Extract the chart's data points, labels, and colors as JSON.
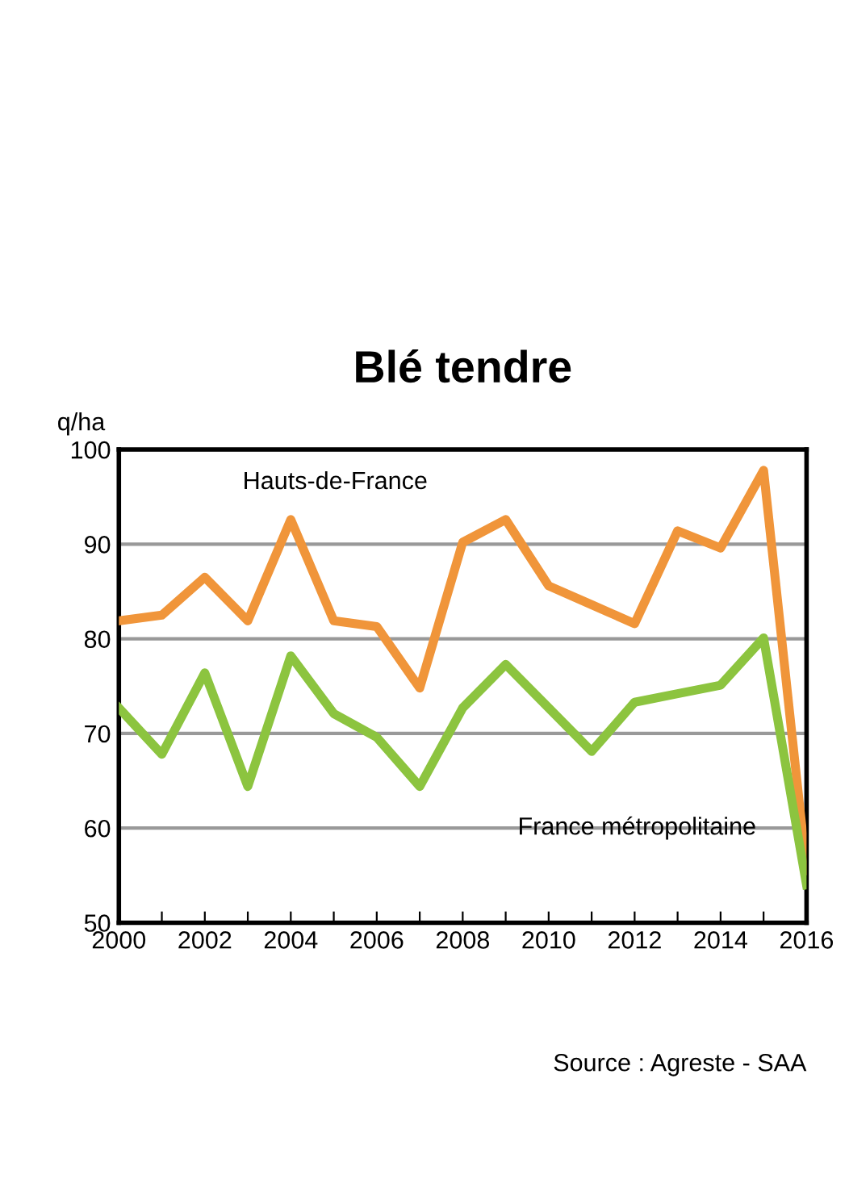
{
  "chart_data": {
    "type": "line",
    "title": "Blé tendre",
    "ylabel": "q/ha",
    "x": [
      2000,
      2001,
      2002,
      2003,
      2004,
      2005,
      2006,
      2007,
      2008,
      2009,
      2010,
      2011,
      2012,
      2013,
      2014,
      2015,
      2016
    ],
    "series": [
      {
        "name": "Hauts-de-France",
        "color": "#f0953a",
        "values": [
          81.9,
          82.5,
          86.5,
          81.9,
          92.6,
          81.9,
          81.3,
          74.8,
          90.2,
          92.6,
          85.6,
          83.6,
          81.6,
          91.4,
          89.6,
          97.8,
          55.5
        ]
      },
      {
        "name": "France métropolitaine",
        "color": "#8cc43f",
        "values": [
          72.7,
          67.8,
          76.4,
          64.4,
          78.2,
          72.1,
          69.6,
          64.4,
          72.7,
          77.3,
          72.7,
          68.1,
          73.3,
          74.2,
          75.1,
          80.1,
          54
        ]
      }
    ],
    "xlim": [
      2000,
      2016
    ],
    "xticks": [
      2000,
      {
        "value": 2001,
        "label": null
      },
      2002,
      {
        "value": 2003,
        "label": null
      },
      2004,
      {
        "value": 2005,
        "label": null
      },
      2006,
      {
        "value": 2007,
        "label": null
      },
      2008,
      {
        "value": 2009,
        "label": null
      },
      2010,
      {
        "value": 2011,
        "label": null
      },
      2012,
      {
        "value": 2013,
        "label": null
      },
      2014,
      {
        "value": 2015,
        "label": null
      },
      2016
    ],
    "ylim": [
      50,
      100
    ],
    "yticks": [
      50,
      60,
      70,
      80,
      90,
      100
    ],
    "grid": "y",
    "legend": false,
    "marker": "none",
    "line_style": "solid",
    "annotations": [
      "Source : Agreste - SAA"
    ]
  }
}
